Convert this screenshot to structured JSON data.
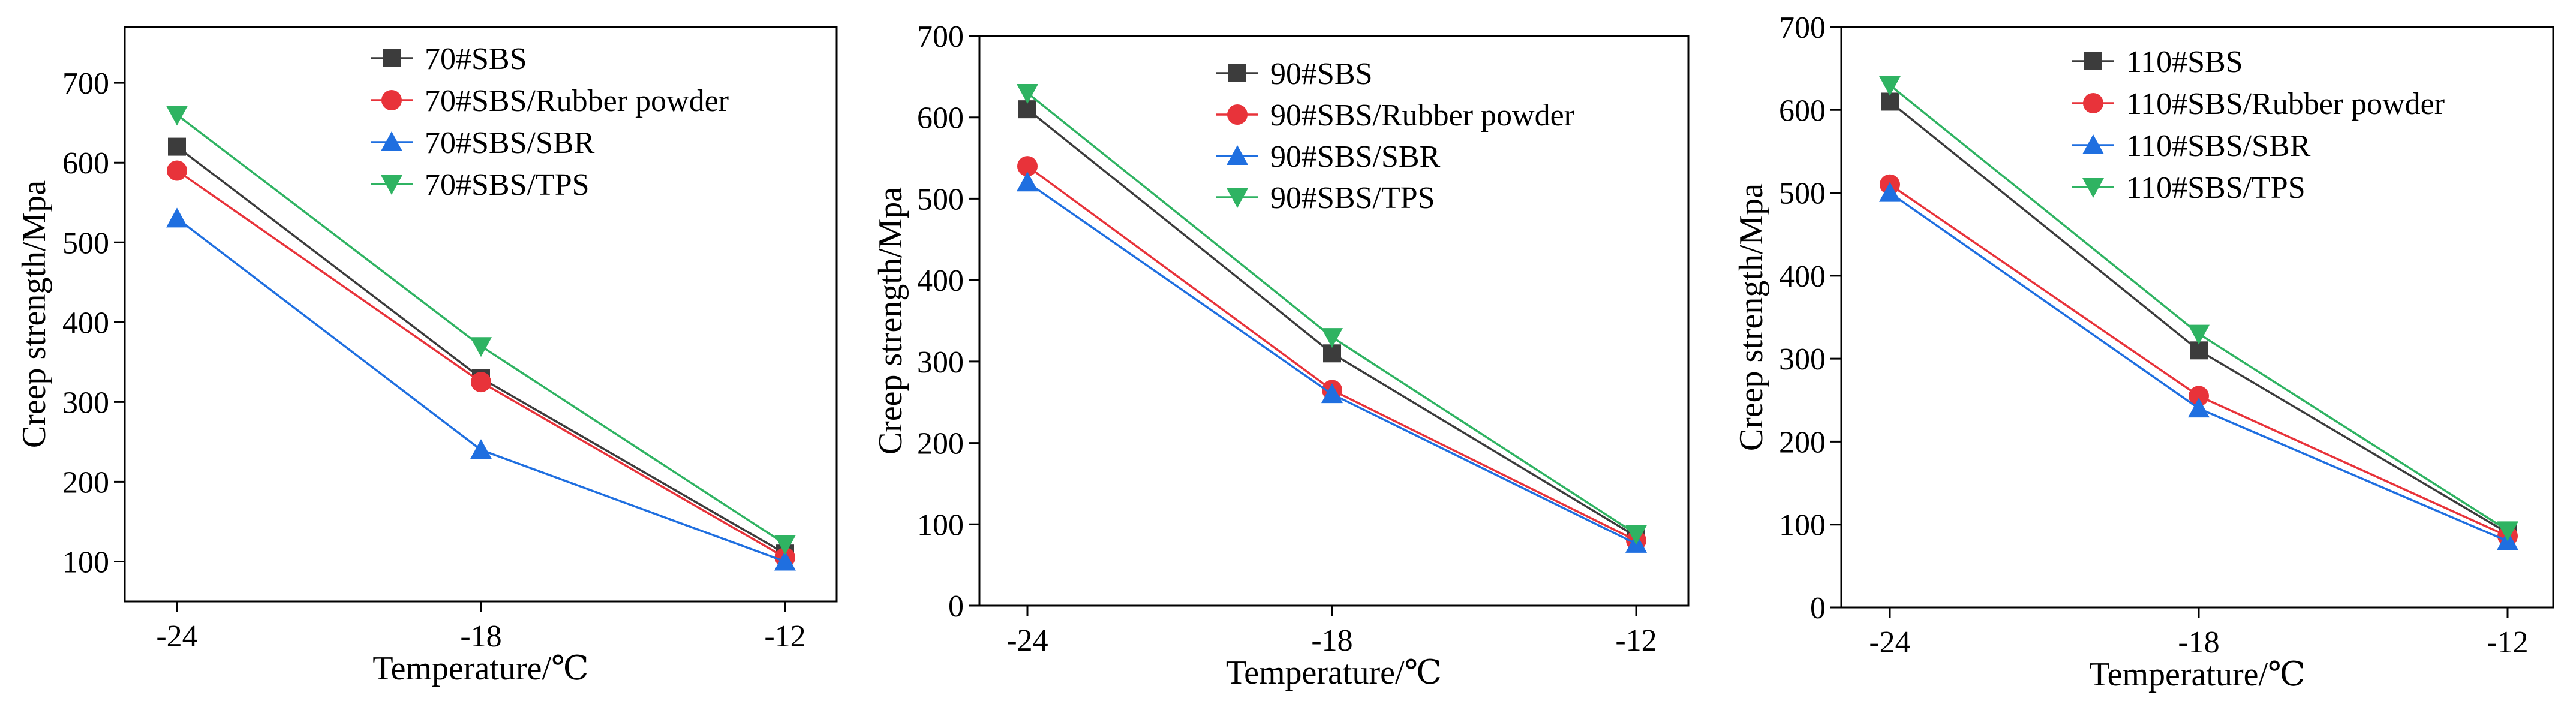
{
  "chart_data": [
    {
      "type": "line",
      "title": "",
      "xlabel": "Temperature/℃",
      "ylabel": "Creep strength/Mpa",
      "categories": [
        "-24",
        "-18",
        "-12"
      ],
      "ylim": [
        50,
        770
      ],
      "yticks": [
        100,
        200,
        300,
        400,
        500,
        600,
        700
      ],
      "legend_position": "top-right",
      "series": [
        {
          "name": "70#SBS",
          "values": [
            620,
            330,
            110
          ]
        },
        {
          "name": "70#SBS/Rubber powder",
          "values": [
            590,
            325,
            105
          ]
        },
        {
          "name": "70#SBS/SBR",
          "values": [
            530,
            240,
            100
          ]
        },
        {
          "name": "70#SBS/TPS",
          "values": [
            660,
            370,
            122
          ]
        }
      ]
    },
    {
      "type": "line",
      "title": "",
      "xlabel": "Temperature/℃",
      "ylabel": "Creep strength/Mpa",
      "categories": [
        "-24",
        "-18",
        "-12"
      ],
      "ylim": [
        0,
        700
      ],
      "yticks": [
        0,
        100,
        200,
        300,
        400,
        500,
        600,
        700
      ],
      "legend_position": "top-right",
      "series": [
        {
          "name": "90#SBS",
          "values": [
            610,
            310,
            85
          ]
        },
        {
          "name": "90#SBS/Rubber powder",
          "values": [
            540,
            265,
            80
          ]
        },
        {
          "name": "90#SBS/SBR",
          "values": [
            520,
            260,
            76
          ]
        },
        {
          "name": "90#SBS/TPS",
          "values": [
            630,
            330,
            88
          ]
        }
      ]
    },
    {
      "type": "line",
      "title": "",
      "xlabel": "Temperature/℃",
      "ylabel": "Creep strength/Mpa",
      "categories": [
        "-24",
        "-18",
        "-12"
      ],
      "ylim": [
        0,
        700
      ],
      "yticks": [
        0,
        100,
        200,
        300,
        400,
        500,
        600,
        700
      ],
      "legend_position": "top-right",
      "series": [
        {
          "name": "110#SBS",
          "values": [
            610,
            310,
            90
          ]
        },
        {
          "name": "110#SBS/Rubber powder",
          "values": [
            510,
            255,
            86
          ]
        },
        {
          "name": "110#SBS/SBR",
          "values": [
            500,
            240,
            80
          ]
        },
        {
          "name": "110#SBS/TPS",
          "values": [
            630,
            330,
            93
          ]
        }
      ]
    }
  ],
  "series_style": [
    {
      "color": "#3c3c3c",
      "marker": "square"
    },
    {
      "color": "#e8333a",
      "marker": "circle"
    },
    {
      "color": "#1f6fe0",
      "marker": "triangle-up"
    },
    {
      "color": "#2fb362",
      "marker": "triangle-down"
    }
  ]
}
